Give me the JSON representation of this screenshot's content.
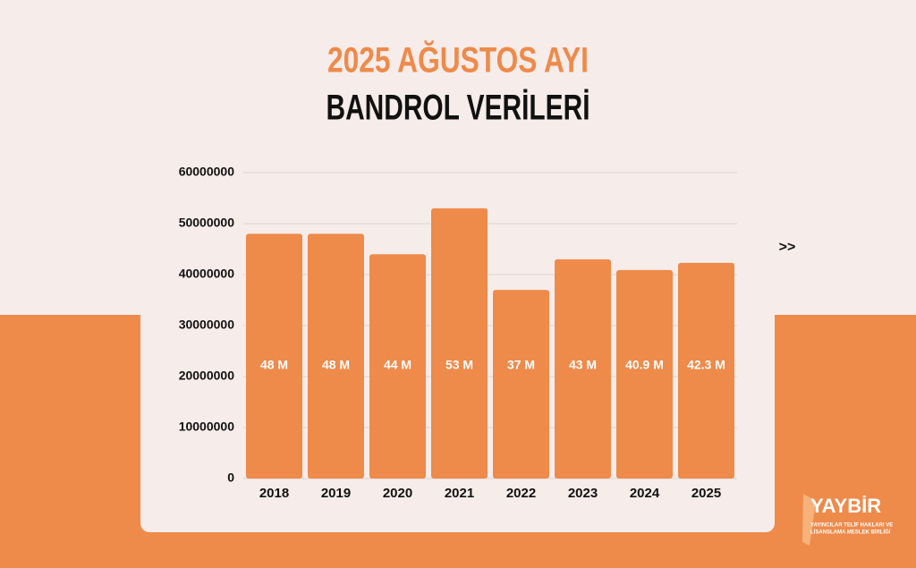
{
  "chart_data": {
    "type": "bar",
    "title": "2025 AĞUSTOS AYI",
    "subtitle": "BANDROL VERİLERİ",
    "categories": [
      "2018",
      "2019",
      "2020",
      "2021",
      "2022",
      "2023",
      "2024",
      "2025"
    ],
    "values": [
      48000000,
      48000000,
      44000000,
      53000000,
      37000000,
      43000000,
      40900000,
      42300000
    ],
    "value_labels": [
      "48 M",
      "48 M",
      "44 M",
      "53 M",
      "37 M",
      "43 M",
      "40.9 M",
      "42.3 M"
    ],
    "color": "#ee8a4a",
    "ylim": [
      0,
      60000000
    ],
    "yticks": [
      0,
      10000000,
      20000000,
      30000000,
      40000000,
      50000000,
      60000000
    ],
    "grid": true
  },
  "nav_arrow": ">>",
  "logo": {
    "name": "YAYBİR",
    "line1": "YAYINCILAR TELİF HAKLARI VE",
    "line2": "LİSANSLAMA MESLEK BİRLİĞİ"
  }
}
